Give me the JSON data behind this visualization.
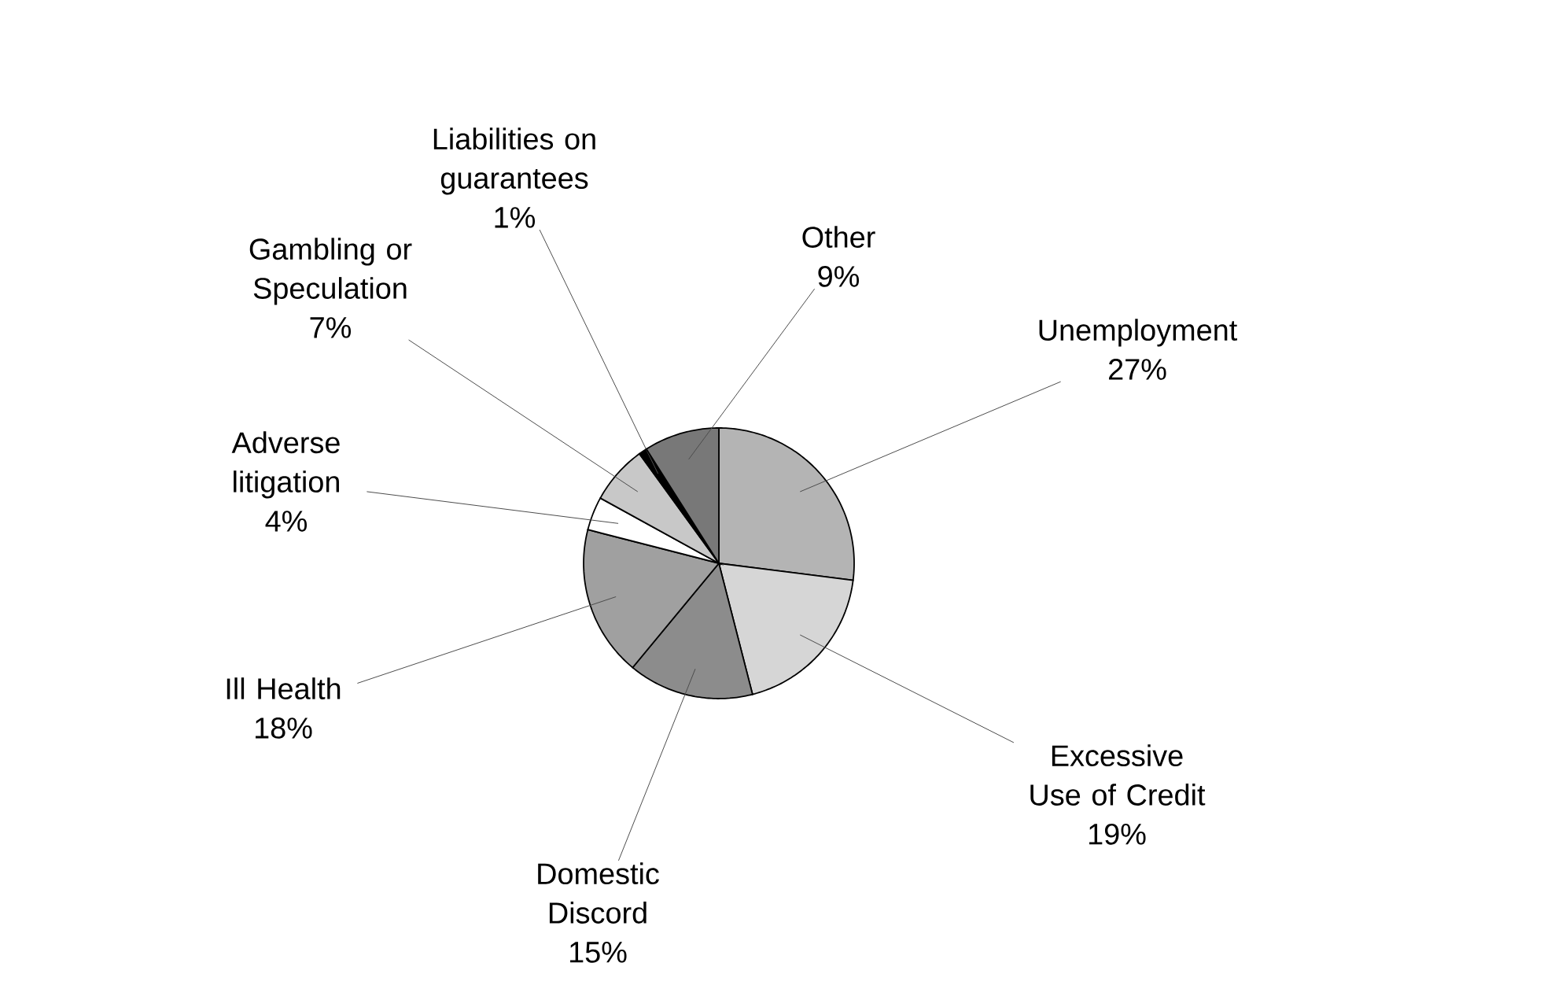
{
  "chart_data": {
    "type": "pie",
    "categories": [
      "Unemployment",
      "Excessive Use of Credit",
      "Domestic Discord",
      "Ill Health",
      "Adverse litigation",
      "Gambling or Speculation",
      "Liabilities on guarantees",
      "Other"
    ],
    "values": [
      27,
      19,
      15,
      18,
      4,
      7,
      1,
      9
    ],
    "value_labels": [
      "27%",
      "19%",
      "15%",
      "18%",
      "4%",
      "7%",
      "1%",
      "9%"
    ],
    "colors": [
      "#b4b4b4",
      "#d6d6d6",
      "#8c8c8c",
      "#a0a0a0",
      "#ffffff",
      "#c8c8c8",
      "#000000",
      "#787878"
    ]
  }
}
